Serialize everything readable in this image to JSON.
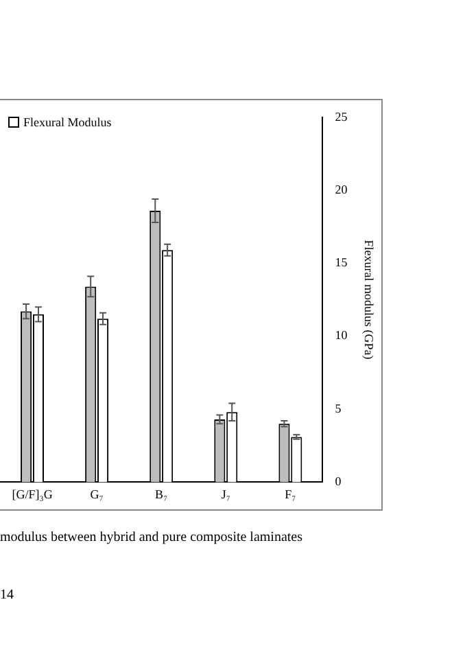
{
  "chart_data": {
    "type": "bar",
    "categories": [
      "[G/F]₃G",
      "G₇",
      "B₇",
      "J₇",
      "F₇"
    ],
    "series": [
      {
        "color": "#bdbdbd",
        "values": [
          11.7,
          13.4,
          18.6,
          4.3,
          4.0
        ],
        "errors": [
          0.5,
          0.7,
          0.8,
          0.3,
          0.2
        ]
      },
      {
        "name": "Flexural Modulus",
        "color": "#ffffff",
        "values": [
          11.5,
          11.2,
          15.9,
          4.8,
          3.1
        ],
        "errors": [
          0.5,
          0.4,
          0.4,
          0.6,
          0.15
        ]
      }
    ],
    "y2label": "Flexural modulus (GPa)",
    "ylim": [
      0,
      25
    ],
    "yticks": [
      0,
      5,
      10,
      15,
      20,
      25
    ],
    "grid": false,
    "legend": "top left",
    "annotations": [
      "modulus between hybrid and pure composite laminates",
      "14"
    ]
  }
}
